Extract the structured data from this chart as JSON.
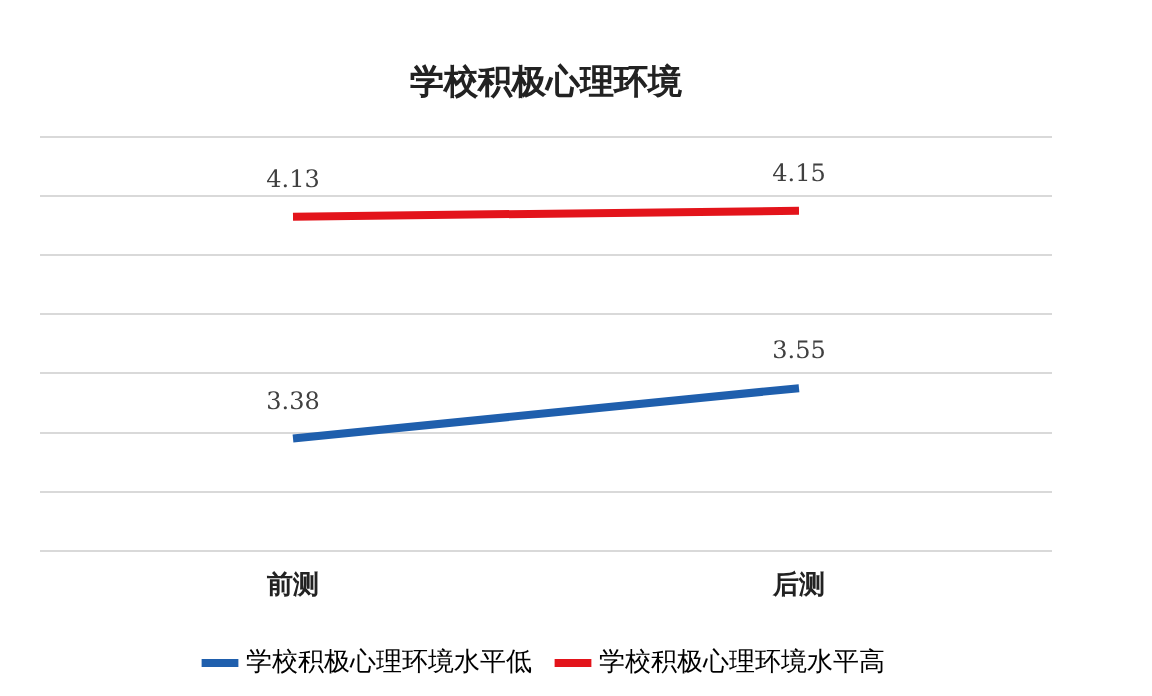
{
  "chart_data": {
    "type": "line",
    "title": "学校积极心理环境",
    "categories": [
      "前测",
      "后测"
    ],
    "series": [
      {
        "name": "学校积极心理环境水平低",
        "color": "#1f5fad",
        "values": [
          3.38,
          3.55
        ]
      },
      {
        "name": "学校积极心理环境水平高",
        "color": "#e3141b",
        "values": [
          4.13,
          4.15
        ]
      }
    ],
    "ylim": [
      3,
      4.4
    ],
    "yticks": [
      {
        "value": 3,
        "label": null
      },
      {
        "value": 3.2,
        "label": null
      },
      {
        "value": 3.4,
        "label": null
      },
      {
        "value": 3.6,
        "label": null
      },
      {
        "value": 3.8,
        "label": null
      },
      {
        "value": 4,
        "label": null
      },
      {
        "value": 4.2,
        "label": null
      },
      {
        "value": 4.4,
        "label": null
      }
    ],
    "tick_labels": "x",
    "grid": "y",
    "legend": "bottom",
    "data_labels": true,
    "marker": "none",
    "line_style": "solid"
  }
}
